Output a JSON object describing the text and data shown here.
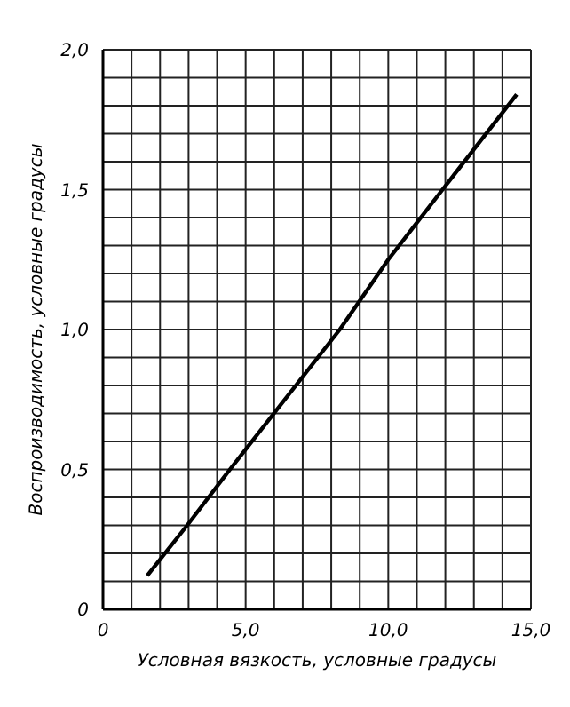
{
  "chart_data": {
    "type": "line",
    "xlabel": "Условная вязкость, условные градусы",
    "ylabel": "Воспроизводимость, условные градусы",
    "x": [
      1.55,
      2.95,
      4.45,
      8.3,
      10.0,
      11.9,
      14.5
    ],
    "series": [
      {
        "color": "#000000",
        "values": [
          0.12,
          0.3,
          0.5,
          1.0,
          1.25,
          1.5,
          1.84
        ]
      }
    ],
    "xlim": [
      0,
      15
    ],
    "xticks": [
      0,
      {
        "value": 1,
        "label": null
      },
      {
        "value": 2,
        "label": null
      },
      {
        "value": 3,
        "label": null
      },
      {
        "value": 4,
        "label": null
      },
      {
        "value": 5,
        "label": "5,0"
      },
      {
        "value": 6,
        "label": null
      },
      {
        "value": 7,
        "label": null
      },
      {
        "value": 8,
        "label": null
      },
      {
        "value": 9,
        "label": null
      },
      {
        "value": 10,
        "label": "10,0"
      },
      {
        "value": 11,
        "label": null
      },
      {
        "value": 12,
        "label": null
      },
      {
        "value": 13,
        "label": null
      },
      {
        "value": 14,
        "label": null
      },
      {
        "value": 15,
        "label": "15,0"
      }
    ],
    "ylim": [
      0,
      2
    ],
    "yticks": [
      0,
      {
        "value": 0.1,
        "label": null
      },
      {
        "value": 0.2,
        "label": null
      },
      {
        "value": 0.3,
        "label": null
      },
      {
        "value": 0.4,
        "label": null
      },
      {
        "value": 0.5,
        "label": "0,5"
      },
      {
        "value": 0.6,
        "label": null
      },
      {
        "value": 0.7,
        "label": null
      },
      {
        "value": 0.8,
        "label": null
      },
      {
        "value": 0.9,
        "label": null
      },
      {
        "value": 1.0,
        "label": "1,0"
      },
      {
        "value": 1.1,
        "label": null
      },
      {
        "value": 1.2,
        "label": null
      },
      {
        "value": 1.3,
        "label": null
      },
      {
        "value": 1.4,
        "label": null
      },
      {
        "value": 1.5,
        "label": "1,5"
      },
      {
        "value": 1.6,
        "label": null
      },
      {
        "value": 1.7,
        "label": null
      },
      {
        "value": 1.8,
        "label": null
      },
      {
        "value": 1.9,
        "label": null
      },
      {
        "value": 2.0,
        "label": "2,0"
      }
    ],
    "grid": true
  }
}
